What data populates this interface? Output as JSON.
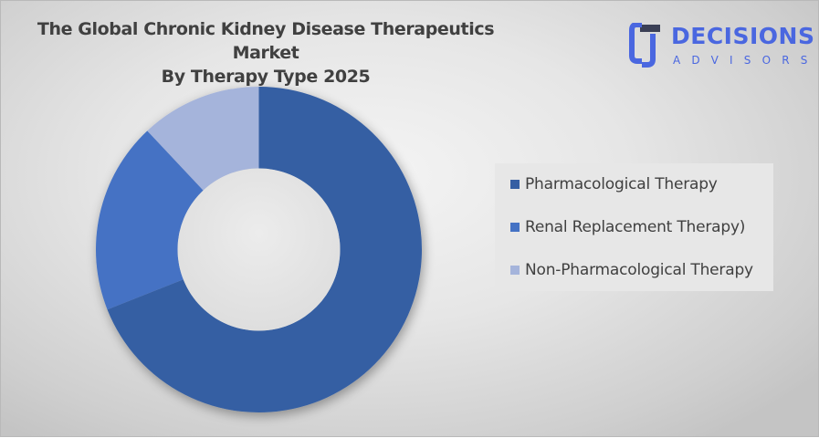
{
  "title": {
    "line1": "The Global Chronic Kidney Disease Therapeutics Market",
    "line2": "By Therapy Type 2025"
  },
  "logo": {
    "icon": "decisions-advisors-logo-icon",
    "main": "DECISIONS",
    "sub": "ADVISORS",
    "color": "#4a67e0"
  },
  "legend": {
    "items": [
      {
        "label": "Pharmacological Therapy",
        "color": "#365fa3"
      },
      {
        "label": "Renal Replacement Therapy)",
        "color": "#4472c4"
      },
      {
        "label": "Non-Pharmacological Therapy",
        "color": "#a5b4db"
      }
    ]
  },
  "chart_data": {
    "type": "pie",
    "subtype": "donut",
    "title": "The Global Chronic Kidney Disease Therapeutics Market By Therapy Type 2025",
    "categories": [
      "Pharmacological Therapy",
      "Renal Replacement Therapy)",
      "Non-Pharmacological Therapy"
    ],
    "values": [
      69,
      19,
      12
    ],
    "unit": "%",
    "colors": [
      "#365fa3",
      "#4472c4",
      "#a5b4db"
    ],
    "start_angle_deg": 0,
    "direction": "clockwise",
    "hole_ratio": 0.5,
    "data_labels": false,
    "legend_position": "right"
  }
}
